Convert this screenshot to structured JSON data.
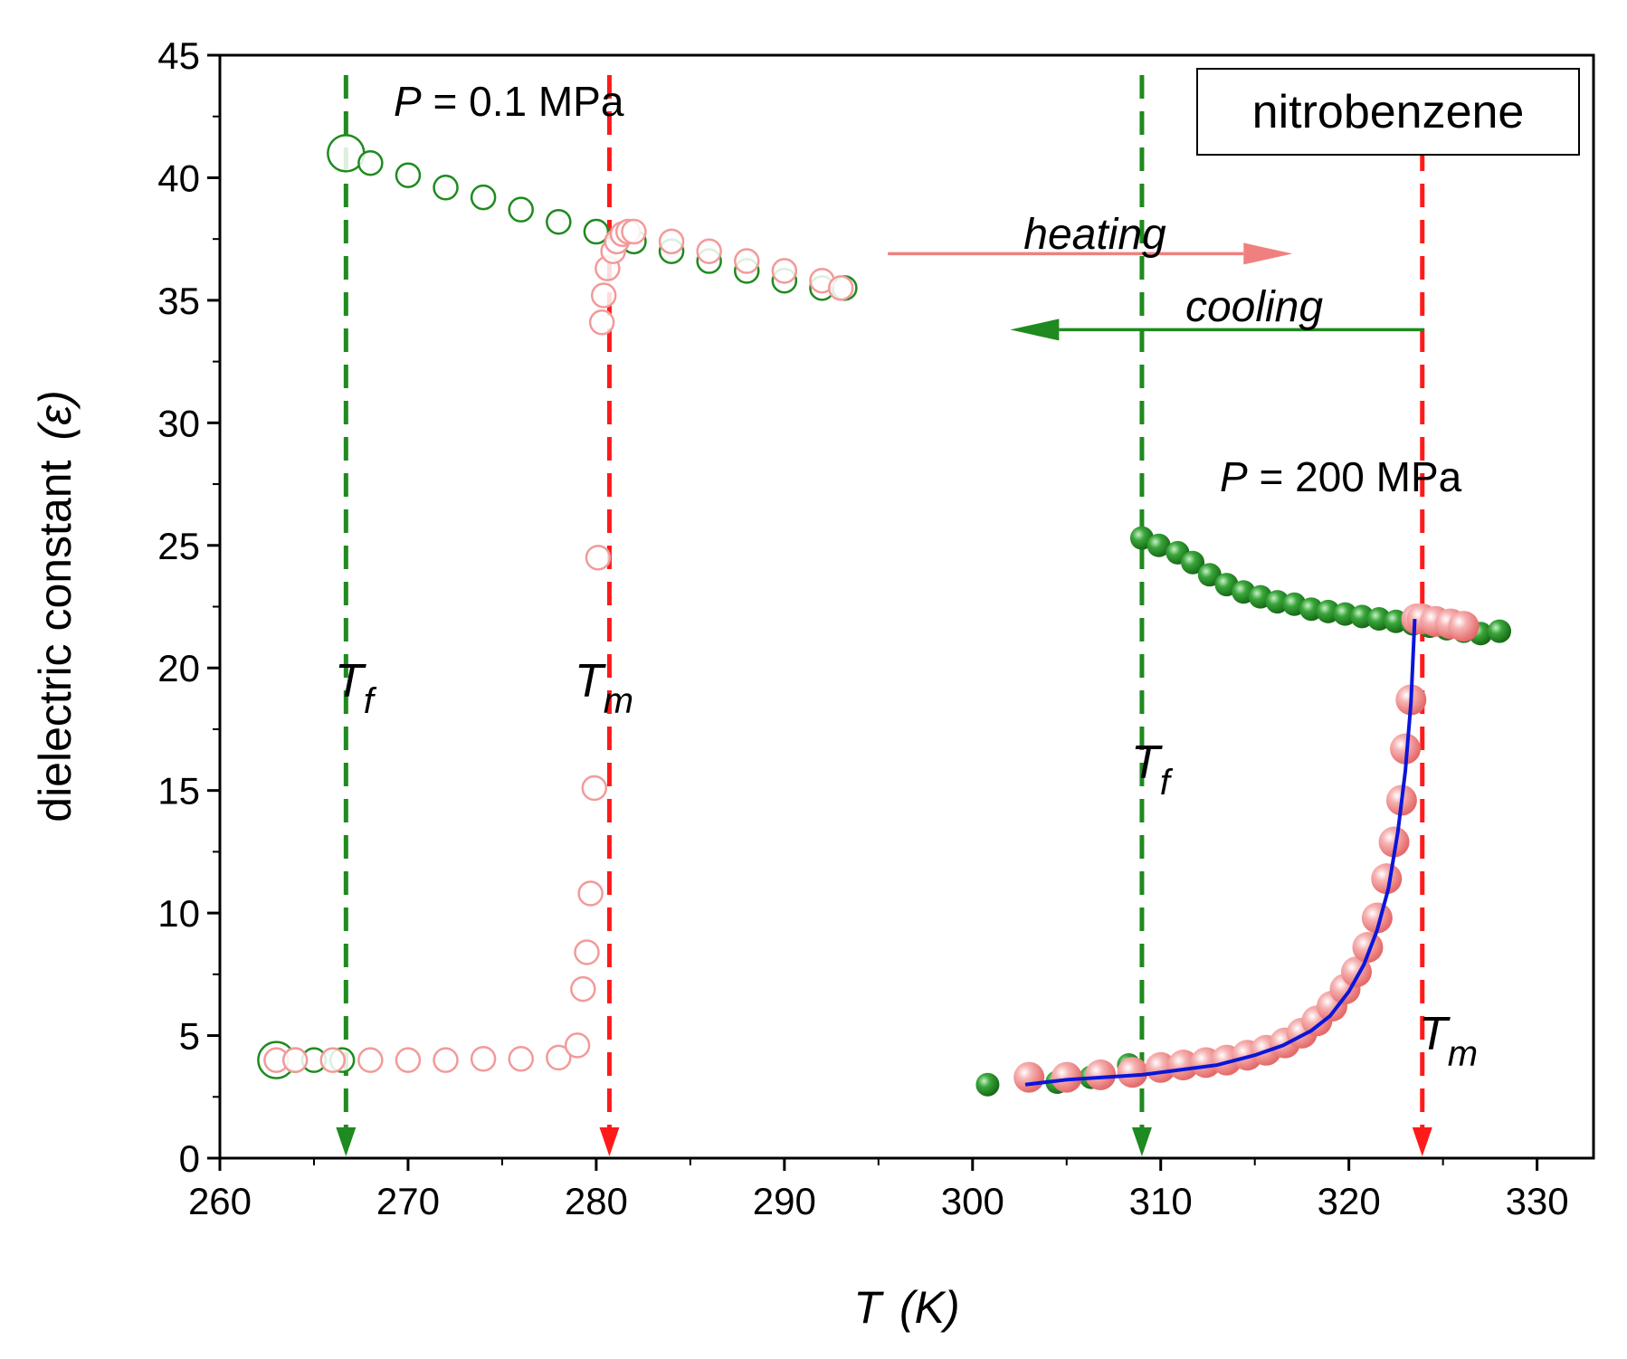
{
  "chart_data": {
    "type": "scatter",
    "title": "",
    "xlabel": "T  (K)",
    "xlabel_var": "T",
    "xlabel_unit": "(K)",
    "ylabel": "dielectric constant  (ε)",
    "ylabel_text": "dielectric constant",
    "ylabel_symbol": "(ε)",
    "xlim": [
      260,
      333
    ],
    "ylim": [
      0,
      45
    ],
    "xticks": [
      260,
      270,
      280,
      290,
      300,
      310,
      320,
      330
    ],
    "yticks": [
      0,
      5,
      10,
      15,
      20,
      25,
      30,
      35,
      40,
      45
    ],
    "legend_box_label": "nitrobenzene",
    "annotations": {
      "p_low": {
        "var": "P",
        "rest": " = 0.1 MPa"
      },
      "p_high": {
        "var": "P",
        "rest": " = 200 MPa"
      },
      "heating": "heating",
      "cooling": "cooling",
      "tf_low": {
        "main": "T",
        "sub": "f"
      },
      "tm_low": {
        "main": "T",
        "sub": "m"
      },
      "tf_high": {
        "main": "T",
        "sub": "f"
      },
      "tm_high": {
        "main": "T",
        "sub": "m"
      }
    },
    "vlines": [
      {
        "name": "Tf-0.1MPa",
        "x": 266.7,
        "color": "#1f8a1f"
      },
      {
        "name": "Tm-0.1MPa",
        "x": 280.7,
        "color": "#ff1a1a"
      },
      {
        "name": "Tf-200MPa",
        "x": 309.0,
        "color": "#1f8a1f"
      },
      {
        "name": "Tm-200MPa",
        "x": 323.9,
        "color": "#ff1a1a"
      }
    ],
    "series": [
      {
        "name": "cooling 0.1 MPa (liquid)",
        "style": "open",
        "color": "#1f8a1f",
        "x": [
          266.7,
          268,
          270,
          272,
          274,
          276,
          278,
          280,
          282,
          284,
          286,
          288,
          290,
          292,
          293.2
        ],
        "y": [
          41.0,
          40.6,
          40.1,
          39.6,
          39.2,
          38.7,
          38.2,
          37.8,
          37.4,
          37.0,
          36.6,
          36.2,
          35.8,
          35.5,
          35.5
        ]
      },
      {
        "name": "cooling 0.1 MPa (crystal)",
        "style": "open",
        "color": "#1f8a1f",
        "x": [
          263.0,
          264,
          265,
          266.5
        ],
        "y": [
          4.0,
          4.0,
          4.0,
          4.0
        ]
      },
      {
        "name": "heating 0.1 MPa",
        "style": "open",
        "color": "#f29a9a",
        "x": [
          263.0,
          264,
          266,
          268,
          270,
          272,
          274,
          276,
          278,
          279.0,
          279.3,
          279.5,
          279.7,
          279.9,
          280.1,
          280.3,
          280.4,
          280.6,
          280.9,
          281.1,
          281.4,
          281.7,
          282,
          284,
          286,
          288,
          290,
          292,
          293.0
        ],
        "y": [
          4.0,
          4.0,
          4.0,
          4.0,
          4.0,
          4.0,
          4.05,
          4.05,
          4.1,
          4.6,
          6.9,
          8.4,
          10.8,
          15.1,
          24.5,
          34.1,
          35.2,
          36.3,
          37.0,
          37.4,
          37.7,
          37.8,
          37.8,
          37.4,
          37.0,
          36.6,
          36.2,
          35.8,
          35.5
        ]
      },
      {
        "name": "cooling 200 MPa",
        "style": "filled",
        "color": "#2e9a2e",
        "x": [
          300.8,
          304.5,
          306.3,
          308.3,
          309.0,
          309.9,
          310.9,
          311.7,
          312.6,
          313.5,
          314.4,
          315.3,
          316.2,
          317.1,
          318.0,
          318.9,
          319.8,
          320.7,
          321.6,
          322.5,
          323.4,
          324.3,
          325.2,
          326.1,
          327.0,
          328.0
        ],
        "y": [
          3.0,
          3.1,
          3.3,
          3.8,
          25.3,
          25.0,
          24.7,
          24.3,
          23.8,
          23.4,
          23.1,
          22.9,
          22.7,
          22.6,
          22.4,
          22.3,
          22.2,
          22.1,
          22.0,
          21.9,
          21.8,
          21.7,
          21.6,
          21.5,
          21.4,
          21.5
        ]
      },
      {
        "name": "heating 200 MPa",
        "style": "filled",
        "color": "#f08080",
        "x": [
          303.0,
          305.0,
          306.8,
          308.5,
          310.0,
          311.2,
          312.4,
          313.5,
          314.6,
          315.6,
          316.6,
          317.5,
          318.3,
          319.1,
          319.8,
          320.4,
          321.0,
          321.5,
          322.0,
          322.4,
          322.8,
          323.0,
          323.3,
          323.6,
          323.9,
          324.6,
          325.4,
          326.1
        ],
        "y": [
          3.3,
          3.3,
          3.4,
          3.5,
          3.7,
          3.8,
          3.9,
          4.0,
          4.2,
          4.4,
          4.7,
          5.1,
          5.6,
          6.2,
          6.9,
          7.6,
          8.6,
          9.8,
          11.4,
          12.9,
          14.6,
          16.7,
          18.7,
          22.0,
          22.0,
          21.9,
          21.8,
          21.7
        ]
      }
    ],
    "fit_curve": {
      "name": "fit 200 MPa",
      "color": "#0a16d8",
      "x": [
        302.8,
        305,
        307,
        309,
        311,
        313,
        315,
        316.5,
        318,
        319,
        320,
        320.8,
        321.5,
        322.1,
        322.6,
        323.0,
        323.3,
        323.5
      ],
      "y": [
        3.0,
        3.2,
        3.3,
        3.4,
        3.6,
        3.8,
        4.2,
        4.6,
        5.2,
        5.8,
        6.8,
        7.9,
        9.3,
        11.0,
        13.3,
        15.8,
        18.6,
        22.0
      ]
    },
    "arrows": [
      {
        "name": "heating-arrow",
        "x1": 295.5,
        "y1": 36.9,
        "x2": 317.0,
        "y2": 36.9,
        "color": "#f08080"
      },
      {
        "name": "cooling-arrow",
        "x1": 324.0,
        "y1": 33.8,
        "x2": 302.0,
        "y2": 33.8,
        "color": "#1f8a1f"
      }
    ]
  }
}
